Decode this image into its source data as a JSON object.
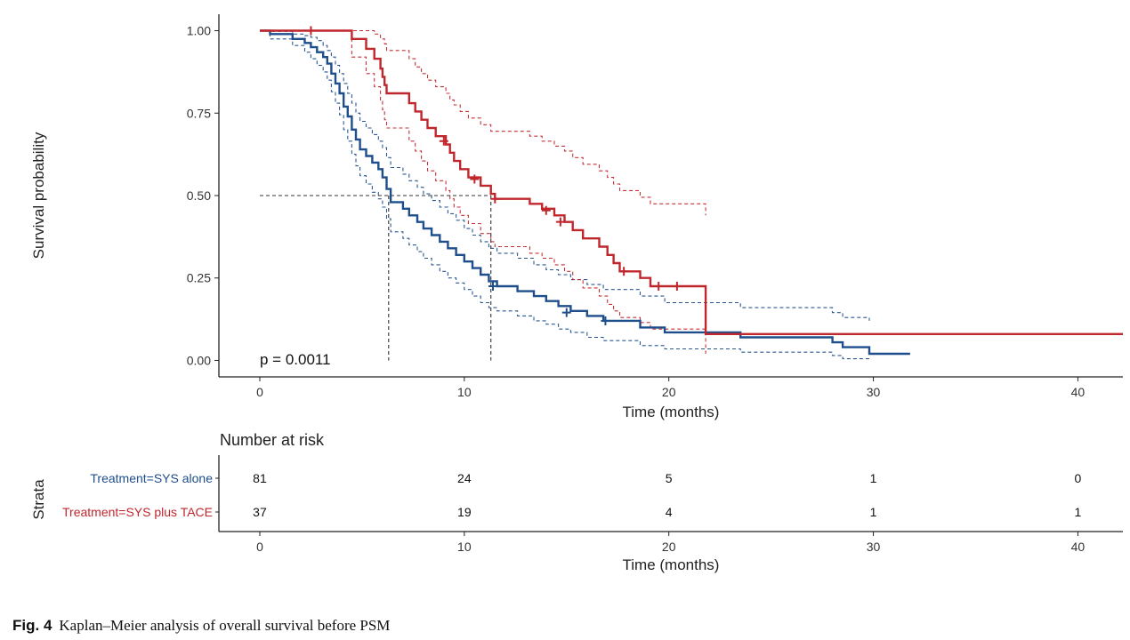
{
  "colors": {
    "sys_alone": "#1f4e8c",
    "sys_plus_tace": "#c0272d",
    "axis": "#222222",
    "tick": "#333333"
  },
  "chart_data": [
    {
      "type": "line",
      "subtype": "kaplan-meier",
      "xlabel": "Time (months)",
      "ylabel": "Survival probability",
      "xlim": [
        -2,
        42.2
      ],
      "ylim": [
        -0.05,
        1.05
      ],
      "xticks": [
        0,
        10,
        20,
        30,
        40
      ],
      "yticks": [
        0.0,
        0.25,
        0.5,
        0.75,
        1.0
      ],
      "ytick_labels": [
        "0.00",
        "0.25",
        "0.50",
        "0.75",
        "1.00"
      ],
      "grid": false,
      "annotation": "p = 0.0011",
      "median_lines": [
        {
          "x": 6.3,
          "y": 0.5
        },
        {
          "x": 11.3,
          "y": 0.5
        }
      ],
      "series": [
        {
          "name": "Treatment=SYS alone",
          "color": "#1f4e8c",
          "steps": [
            [
              0,
              1.0
            ],
            [
              0.5,
              0.99
            ],
            [
              1.6,
              0.975
            ],
            [
              2.2,
              0.963
            ],
            [
              2.5,
              0.95
            ],
            [
              2.8,
              0.935
            ],
            [
              3.1,
              0.92
            ],
            [
              3.3,
              0.9
            ],
            [
              3.5,
              0.87
            ],
            [
              3.7,
              0.84
            ],
            [
              3.9,
              0.81
            ],
            [
              4.1,
              0.77
            ],
            [
              4.3,
              0.74
            ],
            [
              4.5,
              0.7
            ],
            [
              4.7,
              0.67
            ],
            [
              4.9,
              0.64
            ],
            [
              5.2,
              0.62
            ],
            [
              5.5,
              0.6
            ],
            [
              5.8,
              0.58
            ],
            [
              6.0,
              0.555
            ],
            [
              6.2,
              0.52
            ],
            [
              6.4,
              0.48
            ],
            [
              7.0,
              0.46
            ],
            [
              7.3,
              0.44
            ],
            [
              7.7,
              0.42
            ],
            [
              8.0,
              0.4
            ],
            [
              8.4,
              0.38
            ],
            [
              8.8,
              0.36
            ],
            [
              9.2,
              0.34
            ],
            [
              9.6,
              0.32
            ],
            [
              10.0,
              0.3
            ],
            [
              10.4,
              0.28
            ],
            [
              10.8,
              0.26
            ],
            [
              11.2,
              0.24
            ],
            [
              11.6,
              0.225
            ],
            [
              12.6,
              0.21
            ],
            [
              13.4,
              0.195
            ],
            [
              14.0,
              0.18
            ],
            [
              14.6,
              0.165
            ],
            [
              15.2,
              0.15
            ],
            [
              16.0,
              0.135
            ],
            [
              16.8,
              0.12
            ],
            [
              18.6,
              0.1
            ],
            [
              19.8,
              0.085
            ],
            [
              23.5,
              0.07
            ],
            [
              28.0,
              0.055
            ],
            [
              28.5,
              0.04
            ],
            [
              29.8,
              0.02
            ],
            [
              31.8,
              0.02
            ]
          ],
          "upper": [
            [
              0,
              1.0
            ],
            [
              0.5,
              0.998
            ],
            [
              1.6,
              0.99
            ],
            [
              2.2,
              0.985
            ],
            [
              2.5,
              0.98
            ],
            [
              2.8,
              0.97
            ],
            [
              3.1,
              0.955
            ],
            [
              3.3,
              0.94
            ],
            [
              3.5,
              0.92
            ],
            [
              3.7,
              0.895
            ],
            [
              3.9,
              0.87
            ],
            [
              4.1,
              0.84
            ],
            [
              4.3,
              0.81
            ],
            [
              4.5,
              0.78
            ],
            [
              4.7,
              0.75
            ],
            [
              4.9,
              0.725
            ],
            [
              5.2,
              0.705
            ],
            [
              5.5,
              0.685
            ],
            [
              5.8,
              0.665
            ],
            [
              6.0,
              0.645
            ],
            [
              6.2,
              0.615
            ],
            [
              6.4,
              0.585
            ],
            [
              7.0,
              0.565
            ],
            [
              7.3,
              0.545
            ],
            [
              7.7,
              0.525
            ],
            [
              8.0,
              0.505
            ],
            [
              8.4,
              0.485
            ],
            [
              8.8,
              0.465
            ],
            [
              9.2,
              0.445
            ],
            [
              9.6,
              0.425
            ],
            [
              10.0,
              0.4
            ],
            [
              10.4,
              0.38
            ],
            [
              10.8,
              0.36
            ],
            [
              11.2,
              0.34
            ],
            [
              11.6,
              0.325
            ],
            [
              12.6,
              0.31
            ],
            [
              13.4,
              0.29
            ],
            [
              14.0,
              0.275
            ],
            [
              14.6,
              0.26
            ],
            [
              15.2,
              0.245
            ],
            [
              16.0,
              0.23
            ],
            [
              16.8,
              0.215
            ],
            [
              18.6,
              0.195
            ],
            [
              19.8,
              0.175
            ],
            [
              23.5,
              0.16
            ],
            [
              28.0,
              0.145
            ],
            [
              28.5,
              0.13
            ],
            [
              29.8,
              0.12
            ]
          ],
          "lower": [
            [
              0,
              1.0
            ],
            [
              0.5,
              0.975
            ],
            [
              1.6,
              0.955
            ],
            [
              2.2,
              0.935
            ],
            [
              2.5,
              0.915
            ],
            [
              2.8,
              0.895
            ],
            [
              3.1,
              0.875
            ],
            [
              3.3,
              0.85
            ],
            [
              3.5,
              0.815
            ],
            [
              3.7,
              0.78
            ],
            [
              3.9,
              0.745
            ],
            [
              4.1,
              0.7
            ],
            [
              4.3,
              0.665
            ],
            [
              4.5,
              0.625
            ],
            [
              4.7,
              0.59
            ],
            [
              4.9,
              0.56
            ],
            [
              5.2,
              0.535
            ],
            [
              5.5,
              0.51
            ],
            [
              5.8,
              0.49
            ],
            [
              6.0,
              0.465
            ],
            [
              6.2,
              0.43
            ],
            [
              6.4,
              0.39
            ],
            [
              7.0,
              0.37
            ],
            [
              7.3,
              0.35
            ],
            [
              7.7,
              0.33
            ],
            [
              8.0,
              0.31
            ],
            [
              8.4,
              0.29
            ],
            [
              8.8,
              0.27
            ],
            [
              9.2,
              0.25
            ],
            [
              9.6,
              0.235
            ],
            [
              10.0,
              0.215
            ],
            [
              10.4,
              0.195
            ],
            [
              10.8,
              0.175
            ],
            [
              11.2,
              0.16
            ],
            [
              11.6,
              0.15
            ],
            [
              12.6,
              0.135
            ],
            [
              13.4,
              0.12
            ],
            [
              14.0,
              0.11
            ],
            [
              14.6,
              0.095
            ],
            [
              15.2,
              0.085
            ],
            [
              16.0,
              0.07
            ],
            [
              16.8,
              0.06
            ],
            [
              18.6,
              0.045
            ],
            [
              19.8,
              0.035
            ],
            [
              23.5,
              0.025
            ],
            [
              28.0,
              0.015
            ],
            [
              28.5,
              0.005
            ],
            [
              29.8,
              0.0
            ]
          ],
          "censor": [
            [
              11.4,
              0.225
            ],
            [
              15.0,
              0.145
            ],
            [
              16.9,
              0.12
            ]
          ]
        },
        {
          "name": "Treatment=SYS plus TACE",
          "color": "#c0272d",
          "steps": [
            [
              0,
              1.0
            ],
            [
              4.5,
              0.975
            ],
            [
              5.2,
              0.945
            ],
            [
              5.6,
              0.915
            ],
            [
              5.9,
              0.885
            ],
            [
              6.0,
              0.86
            ],
            [
              6.1,
              0.835
            ],
            [
              6.2,
              0.81
            ],
            [
              7.3,
              0.78
            ],
            [
              7.6,
              0.755
            ],
            [
              7.9,
              0.73
            ],
            [
              8.2,
              0.705
            ],
            [
              8.6,
              0.68
            ],
            [
              9.1,
              0.655
            ],
            [
              9.3,
              0.63
            ],
            [
              9.5,
              0.605
            ],
            [
              9.8,
              0.58
            ],
            [
              10.2,
              0.555
            ],
            [
              10.8,
              0.53
            ],
            [
              11.3,
              0.505
            ],
            [
              11.5,
              0.49
            ],
            [
              13.2,
              0.475
            ],
            [
              13.8,
              0.46
            ],
            [
              14.4,
              0.44
            ],
            [
              14.9,
              0.42
            ],
            [
              15.3,
              0.395
            ],
            [
              15.8,
              0.37
            ],
            [
              16.6,
              0.345
            ],
            [
              17.0,
              0.32
            ],
            [
              17.3,
              0.295
            ],
            [
              17.6,
              0.27
            ],
            [
              18.6,
              0.25
            ],
            [
              19.1,
              0.225
            ],
            [
              21.8,
              0.08
            ],
            [
              42.2,
              0.08
            ]
          ],
          "upper": [
            [
              0,
              1.0
            ],
            [
              4.5,
              1.0
            ],
            [
              5.6,
              0.99
            ],
            [
              5.9,
              0.975
            ],
            [
              6.1,
              0.96
            ],
            [
              6.2,
              0.94
            ],
            [
              7.3,
              0.915
            ],
            [
              7.6,
              0.89
            ],
            [
              7.9,
              0.87
            ],
            [
              8.2,
              0.85
            ],
            [
              8.6,
              0.83
            ],
            [
              9.1,
              0.81
            ],
            [
              9.3,
              0.79
            ],
            [
              9.5,
              0.775
            ],
            [
              9.8,
              0.755
            ],
            [
              10.2,
              0.735
            ],
            [
              10.8,
              0.715
            ],
            [
              11.3,
              0.695
            ],
            [
              13.2,
              0.68
            ],
            [
              13.8,
              0.665
            ],
            [
              14.4,
              0.65
            ],
            [
              14.9,
              0.635
            ],
            [
              15.3,
              0.615
            ],
            [
              15.8,
              0.595
            ],
            [
              16.6,
              0.575
            ],
            [
              17.0,
              0.555
            ],
            [
              17.3,
              0.535
            ],
            [
              17.6,
              0.515
            ],
            [
              18.6,
              0.495
            ],
            [
              19.1,
              0.475
            ],
            [
              21.8,
              0.44
            ]
          ],
          "lower": [
            [
              0,
              1.0
            ],
            [
              4.5,
              0.92
            ],
            [
              5.2,
              0.87
            ],
            [
              5.6,
              0.83
            ],
            [
              5.9,
              0.79
            ],
            [
              6.0,
              0.76
            ],
            [
              6.1,
              0.73
            ],
            [
              6.2,
              0.705
            ],
            [
              7.3,
              0.665
            ],
            [
              7.6,
              0.635
            ],
            [
              7.9,
              0.605
            ],
            [
              8.2,
              0.575
            ],
            [
              8.6,
              0.545
            ],
            [
              9.1,
              0.515
            ],
            [
              9.3,
              0.49
            ],
            [
              9.5,
              0.465
            ],
            [
              9.8,
              0.44
            ],
            [
              10.2,
              0.415
            ],
            [
              10.8,
              0.385
            ],
            [
              11.3,
              0.36
            ],
            [
              11.5,
              0.345
            ],
            [
              13.2,
              0.325
            ],
            [
              13.8,
              0.31
            ],
            [
              14.4,
              0.29
            ],
            [
              14.9,
              0.27
            ],
            [
              15.3,
              0.245
            ],
            [
              15.8,
              0.22
            ],
            [
              16.6,
              0.195
            ],
            [
              17.0,
              0.17
            ],
            [
              17.3,
              0.15
            ],
            [
              17.6,
              0.13
            ],
            [
              18.6,
              0.115
            ],
            [
              19.1,
              0.095
            ],
            [
              21.8,
              0.02
            ]
          ],
          "censor": [
            [
              2.5,
              1.0
            ],
            [
              9.0,
              0.665
            ],
            [
              10.5,
              0.55
            ],
            [
              11.5,
              0.49
            ],
            [
              14.0,
              0.455
            ],
            [
              14.7,
              0.42
            ],
            [
              17.8,
              0.27
            ],
            [
              19.5,
              0.225
            ],
            [
              20.4,
              0.225
            ]
          ]
        }
      ]
    },
    {
      "type": "table",
      "title": "Number at risk",
      "ylabel": "Strata",
      "xlabel": "Time (months)",
      "x": [
        0,
        10,
        20,
        30,
        40
      ],
      "rows": [
        {
          "name": "Treatment=SYS alone",
          "color": "#1f4e8c",
          "values": [
            81,
            24,
            5,
            1,
            0
          ]
        },
        {
          "name": "Treatment=SYS plus TACE",
          "color": "#c0272d",
          "values": [
            37,
            19,
            4,
            1,
            1
          ]
        }
      ]
    }
  ],
  "caption": {
    "label": "Fig. 4",
    "text": "Kaplan–Meier analysis of overall survival before PSM"
  }
}
